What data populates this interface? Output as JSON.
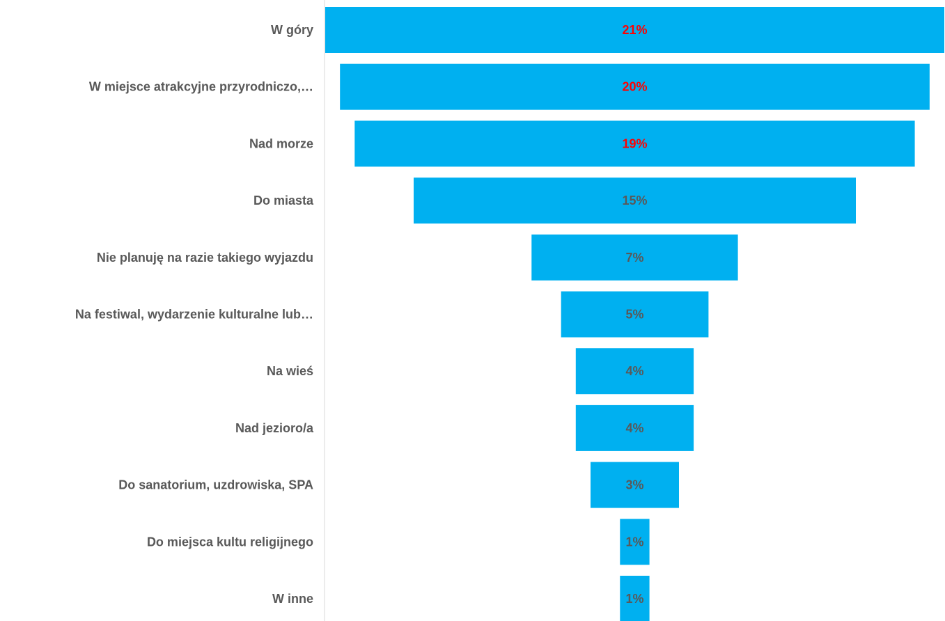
{
  "chart_data": {
    "type": "bar",
    "orientation": "horizontal-funnel",
    "title": "",
    "xlabel": "",
    "ylabel": "",
    "categories": [
      "W góry",
      "W miejsce atrakcyjne przyrodniczo,…",
      "Nad morze",
      "Do miasta",
      "Nie planuję na razie takiego wyjazdu",
      "Na festiwal, wydarzenie kulturalne lub…",
      "Na wieś",
      "Nad jezioro/a",
      "Do sanatorium, uzdrowiska, SPA",
      "Do miejsca kultu religijnego",
      "W inne"
    ],
    "values": [
      21,
      20,
      19,
      15,
      7,
      5,
      4,
      4,
      3,
      1,
      1
    ],
    "value_labels": [
      "21%",
      "20%",
      "19%",
      "15%",
      "7%",
      "5%",
      "4%",
      "4%",
      "3%",
      "1%",
      "1%"
    ],
    "xlim": [
      0,
      21
    ],
    "grid": false,
    "legend": "none",
    "bar_color": "#00B0F0",
    "label_color_highlight": "#FF0000",
    "label_color_default": "#595959",
    "highlight_top_n": 3
  }
}
